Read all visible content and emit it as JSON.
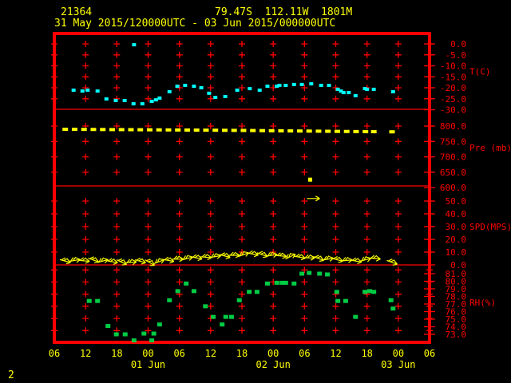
{
  "header": {
    "station_id": "21364",
    "location": "79.47S  112.11W  1801M",
    "time_range": "31 May 2015/120000UTC - 03 Jun 2015/000000UTC"
  },
  "page_number": "2",
  "colors": {
    "background": "#000000",
    "frame": "#ff0000",
    "axis_text": "#ff0000",
    "title_text": "#ffff00",
    "temperature": "#00ffff",
    "pressure": "#ffff00",
    "wind": "#ffff00",
    "humidity": "#00cc44"
  },
  "chart_data": {
    "type": "scatter",
    "title": "21364  79.47S 112.11W 1801M",
    "subtitle": "31 May 2015/120000UTC - 03 Jun 2015/000000UTC",
    "grid": true,
    "x_axis": {
      "t_min": 0,
      "t_max": 72,
      "unit": "hours since 31 May 2015 06UTC",
      "hour_ticks": [
        {
          "t": 0,
          "label": "06"
        },
        {
          "t": 6,
          "label": "12"
        },
        {
          "t": 12,
          "label": "18"
        },
        {
          "t": 18,
          "label": "00"
        },
        {
          "t": 24,
          "label": "06"
        },
        {
          "t": 30,
          "label": "12"
        },
        {
          "t": 36,
          "label": "18"
        },
        {
          "t": 42,
          "label": "00"
        },
        {
          "t": 48,
          "label": "06"
        },
        {
          "t": 54,
          "label": "12"
        },
        {
          "t": 60,
          "label": "18"
        },
        {
          "t": 66,
          "label": "00"
        },
        {
          "t": 72,
          "label": "06"
        }
      ],
      "date_ticks": [
        {
          "t": 18,
          "label": "01 Jun"
        },
        {
          "t": 42,
          "label": "02 Jun"
        },
        {
          "t": 66,
          "label": "03 Jun"
        }
      ]
    },
    "panels": [
      {
        "id": "temperature",
        "label": "T(C)",
        "tick_values": [
          0,
          -5,
          -10,
          -15,
          -20,
          -25,
          -30
        ],
        "tick_labels": [
          "0.0",
          "-5.0",
          "-10.0",
          "-15.0",
          "-20.0",
          "-25.0",
          "-30.0"
        ],
        "points": [
          [
            3.7,
            -21.1
          ],
          [
            5.4,
            -21.5
          ],
          [
            6.4,
            -21.1
          ],
          [
            8.3,
            -21.5
          ],
          [
            10.0,
            -25.1
          ],
          [
            11.8,
            -25.8
          ],
          [
            13.5,
            -25.8
          ],
          [
            15.2,
            -27.3
          ],
          [
            16.9,
            -27.3
          ],
          [
            18.7,
            -26.2
          ],
          [
            19.5,
            -25.5
          ],
          [
            20.2,
            -24.7
          ],
          [
            22.1,
            -21.8
          ],
          [
            23.6,
            -19.3
          ],
          [
            25.1,
            -18.9
          ],
          [
            26.8,
            -19.3
          ],
          [
            28.2,
            -20.0
          ],
          [
            29.7,
            -22.5
          ],
          [
            30.9,
            -24.4
          ],
          [
            32.8,
            -24.0
          ],
          [
            35.1,
            -21.1
          ],
          [
            37.5,
            -20.4
          ],
          [
            39.4,
            -21.1
          ],
          [
            40.9,
            -19.3
          ],
          [
            42.7,
            -19.3
          ],
          [
            43.2,
            -18.9
          ],
          [
            44.4,
            -18.9
          ],
          [
            46.0,
            -18.5
          ],
          [
            47.5,
            -18.5
          ],
          [
            49.3,
            -18.2
          ],
          [
            51.2,
            -18.9
          ],
          [
            52.7,
            -18.9
          ],
          [
            54.4,
            -20.7
          ],
          [
            55.0,
            -21.5
          ],
          [
            55.5,
            -22.2
          ],
          [
            56.5,
            -22.2
          ],
          [
            57.8,
            -23.6
          ],
          [
            59.6,
            -20.4
          ],
          [
            60.0,
            -20.7
          ],
          [
            61.3,
            -20.7
          ],
          [
            65.0,
            -21.8
          ]
        ],
        "outlier_points": [
          [
            15.3,
            -0.4
          ]
        ]
      },
      {
        "id": "pressure",
        "label": "Pre (mb)",
        "tick_values": [
          800,
          750,
          700,
          650,
          600
        ],
        "tick_labels": [
          "800.0",
          "750.0",
          "700.0",
          "650.0",
          "600.0"
        ],
        "points": [
          [
            2.1,
            789.6
          ],
          [
            3.9,
            789.4
          ],
          [
            5.7,
            789.2
          ],
          [
            7.5,
            789.0
          ],
          [
            9.3,
            788.8
          ],
          [
            11.1,
            788.6
          ],
          [
            12.9,
            788.5
          ],
          [
            14.7,
            788.3
          ],
          [
            16.5,
            788.1
          ],
          [
            18.3,
            787.9
          ],
          [
            20.1,
            787.7
          ],
          [
            21.9,
            787.5
          ],
          [
            23.7,
            787.3
          ],
          [
            25.5,
            787.1
          ],
          [
            27.3,
            786.9
          ],
          [
            29.1,
            786.7
          ],
          [
            30.9,
            786.5
          ],
          [
            32.7,
            786.2
          ],
          [
            34.5,
            786.0
          ],
          [
            36.3,
            785.8
          ],
          [
            38.1,
            785.5
          ],
          [
            39.9,
            785.2
          ],
          [
            41.7,
            784.9
          ],
          [
            43.5,
            784.6
          ],
          [
            45.3,
            784.3
          ],
          [
            47.1,
            784.0
          ],
          [
            48.9,
            783.7
          ],
          [
            50.7,
            783.4
          ],
          [
            52.5,
            783.1
          ],
          [
            54.3,
            782.8
          ],
          [
            56.1,
            782.5
          ],
          [
            57.9,
            782.2
          ],
          [
            59.7,
            781.9
          ],
          [
            61.3,
            781.7
          ],
          [
            64.8,
            781.3
          ]
        ],
        "outlier_points": [
          [
            49.1,
            626.0
          ]
        ]
      },
      {
        "id": "speed",
        "label": "SPD(MPS)",
        "tick_values": [
          50,
          40,
          30,
          20,
          10,
          0
        ],
        "tick_labels": [
          "50.0",
          "40.0",
          "30.0",
          "20.0",
          "10.0",
          "0.0"
        ],
        "barbs": [
          [
            2.1,
            3.0,
            15
          ],
          [
            3.9,
            3.5,
            -10
          ],
          [
            5.7,
            3.2,
            5
          ],
          [
            7.5,
            3.8,
            20
          ],
          [
            9.3,
            3.0,
            -15
          ],
          [
            11.1,
            2.5,
            10
          ],
          [
            12.9,
            2.2,
            25
          ],
          [
            14.7,
            2.0,
            -5
          ],
          [
            16.5,
            2.8,
            15
          ],
          [
            18.3,
            1.8,
            30
          ],
          [
            20.1,
            2.5,
            -20
          ],
          [
            21.9,
            3.5,
            10
          ],
          [
            23.7,
            4.5,
            0
          ],
          [
            25.5,
            5.0,
            -15
          ],
          [
            27.3,
            5.5,
            10
          ],
          [
            29.1,
            6.0,
            5
          ],
          [
            30.9,
            6.5,
            -10
          ],
          [
            32.7,
            7.0,
            15
          ],
          [
            34.5,
            7.5,
            0
          ],
          [
            36.3,
            8.0,
            -20
          ],
          [
            38.1,
            8.5,
            10
          ],
          [
            39.9,
            8.0,
            20
          ],
          [
            41.7,
            7.5,
            -10
          ],
          [
            43.5,
            7.0,
            5
          ],
          [
            45.3,
            6.5,
            -25
          ],
          [
            47.1,
            6.0,
            10
          ],
          [
            48.9,
            5.5,
            0
          ],
          [
            50.7,
            5.0,
            20
          ],
          [
            52.5,
            4.5,
            -10
          ],
          [
            54.3,
            4.0,
            15
          ],
          [
            56.1,
            3.5,
            -5
          ],
          [
            57.9,
            3.0,
            10
          ],
          [
            59.7,
            4.0,
            -15
          ],
          [
            61.5,
            5.0,
            5
          ],
          [
            64.8,
            2.0,
            20
          ]
        ],
        "outlier_arrows": [
          [
            49.7,
            52.0
          ]
        ]
      },
      {
        "id": "humidity",
        "label": "RH(%)",
        "tick_values": [
          81,
          80,
          79,
          78,
          77,
          76,
          75,
          74,
          73
        ],
        "tick_labels": [
          "81.0",
          "80.0",
          "79.0",
          "78.0",
          "77.0",
          "76.0",
          "75.0",
          "74.0",
          "73.0"
        ],
        "points": [
          [
            6.7,
            77.4
          ],
          [
            8.3,
            77.4
          ],
          [
            10.3,
            74.1
          ],
          [
            11.9,
            73.0
          ],
          [
            13.6,
            73.0
          ],
          [
            15.3,
            72.2
          ],
          [
            17.2,
            73.1
          ],
          [
            18.7,
            72.2
          ],
          [
            19.1,
            73.1
          ],
          [
            20.2,
            74.3
          ],
          [
            22.1,
            77.5
          ],
          [
            23.7,
            78.7
          ],
          [
            25.3,
            79.7
          ],
          [
            26.8,
            78.7
          ],
          [
            29.0,
            76.7
          ],
          [
            30.5,
            75.3
          ],
          [
            32.2,
            74.3
          ],
          [
            32.9,
            75.3
          ],
          [
            34.0,
            75.3
          ],
          [
            35.5,
            77.5
          ],
          [
            37.4,
            78.6
          ],
          [
            38.9,
            78.6
          ],
          [
            40.9,
            79.7
          ],
          [
            42.7,
            79.8
          ],
          [
            43.7,
            79.8
          ],
          [
            44.4,
            79.8
          ],
          [
            46.0,
            79.7
          ],
          [
            47.5,
            81.0
          ],
          [
            48.9,
            81.1
          ],
          [
            50.9,
            81.0
          ],
          [
            52.4,
            80.9
          ],
          [
            54.2,
            78.6
          ],
          [
            54.4,
            77.4
          ],
          [
            55.9,
            77.4
          ],
          [
            57.8,
            75.3
          ],
          [
            59.6,
            78.6
          ],
          [
            60.5,
            78.7
          ],
          [
            61.3,
            78.6
          ],
          [
            64.6,
            77.5
          ],
          [
            65.0,
            76.4
          ]
        ]
      }
    ]
  }
}
